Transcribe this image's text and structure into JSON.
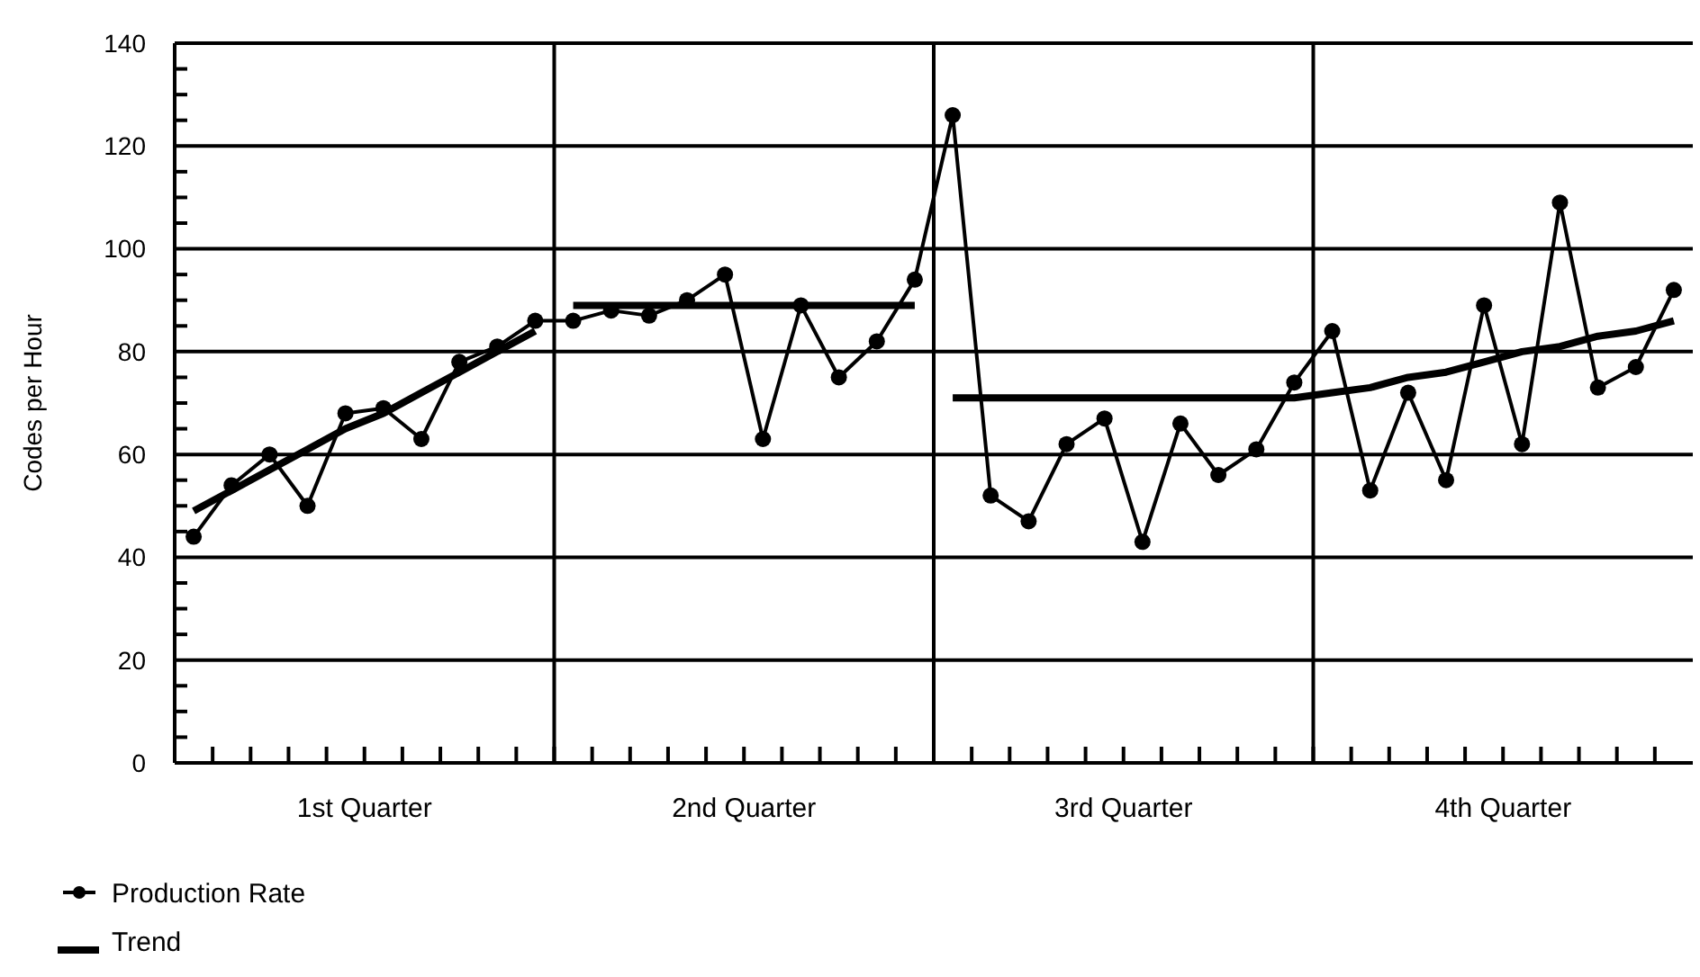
{
  "chart_data": {
    "type": "line",
    "ylabel": "Codes per Hour",
    "categories": [
      null,
      null,
      null,
      null,
      null,
      null,
      null,
      null,
      null,
      null,
      null,
      null,
      null,
      null,
      null,
      null,
      null,
      null,
      null,
      null,
      null,
      null,
      null,
      null,
      null,
      null,
      null,
      null,
      null,
      null,
      null,
      null,
      null,
      null,
      null,
      null,
      null,
      null,
      null,
      null
    ],
    "annotations": [
      "1st Quarter",
      "2nd Quarter",
      "3rd Quarter",
      "4th Quarter"
    ],
    "ylim": [
      0,
      140
    ],
    "yticks": [
      0,
      {
        "value": 5,
        "label": null
      },
      {
        "value": 10,
        "label": null
      },
      {
        "value": 15,
        "label": null
      },
      20,
      {
        "value": 25,
        "label": null
      },
      {
        "value": 30,
        "label": null
      },
      {
        "value": 35,
        "label": null
      },
      40,
      {
        "value": 45,
        "label": null
      },
      {
        "value": 50,
        "label": null
      },
      {
        "value": 55,
        "label": null
      },
      60,
      {
        "value": 65,
        "label": null
      },
      {
        "value": 70,
        "label": null
      },
      {
        "value": 75,
        "label": null
      },
      80,
      {
        "value": 85,
        "label": null
      },
      {
        "value": 90,
        "label": null
      },
      {
        "value": 95,
        "label": null
      },
      100,
      {
        "value": 105,
        "label": null
      },
      {
        "value": 110,
        "label": null
      },
      {
        "value": 115,
        "label": null
      },
      120,
      {
        "value": 125,
        "label": null
      },
      {
        "value": 130,
        "label": null
      },
      {
        "value": 135,
        "label": null
      },
      140
    ],
    "grid": "y",
    "legend": "bottom left",
    "series": [
      {
        "name": "Production Rate",
        "color": "#000000",
        "marker": "circle",
        "values": [
          44,
          54,
          60,
          50,
          68,
          69,
          63,
          78,
          81,
          86,
          86,
          88,
          87,
          90,
          95,
          63,
          89,
          75,
          82,
          94,
          126,
          52,
          47,
          62,
          67,
          43,
          66,
          56,
          61,
          74,
          84,
          53,
          72,
          55,
          89,
          62,
          109,
          73,
          77,
          92
        ]
      },
      {
        "name": "Trend",
        "color": "#000000",
        "marker": "none",
        "values": [
          49,
          53,
          57,
          61,
          65,
          68,
          72,
          76,
          80,
          84,
          null,
          null,
          null,
          null,
          null,
          null,
          null,
          null,
          null,
          null,
          null,
          null,
          null,
          null,
          null,
          null,
          null,
          null,
          null,
          null,
          null,
          null,
          null,
          null,
          null,
          null,
          null,
          null,
          null,
          null
        ]
      },
      {
        "color": "#000000",
        "marker": "none",
        "values": [
          null,
          null,
          null,
          null,
          null,
          null,
          null,
          null,
          null,
          null,
          89,
          89,
          89,
          89,
          89,
          89,
          89,
          89,
          89,
          89,
          null,
          null,
          null,
          null,
          null,
          null,
          null,
          null,
          null,
          null,
          null,
          null,
          null,
          null,
          null,
          null,
          null,
          null,
          null,
          null
        ]
      },
      {
        "color": "#000000",
        "marker": "none",
        "values": [
          null,
          null,
          null,
          null,
          null,
          null,
          null,
          null,
          null,
          null,
          null,
          null,
          null,
          null,
          null,
          null,
          null,
          null,
          null,
          null,
          71,
          71,
          71,
          71,
          71,
          71,
          71,
          71,
          71,
          71,
          72,
          73,
          75,
          76,
          78,
          80,
          81,
          83,
          84,
          86
        ]
      }
    ]
  }
}
